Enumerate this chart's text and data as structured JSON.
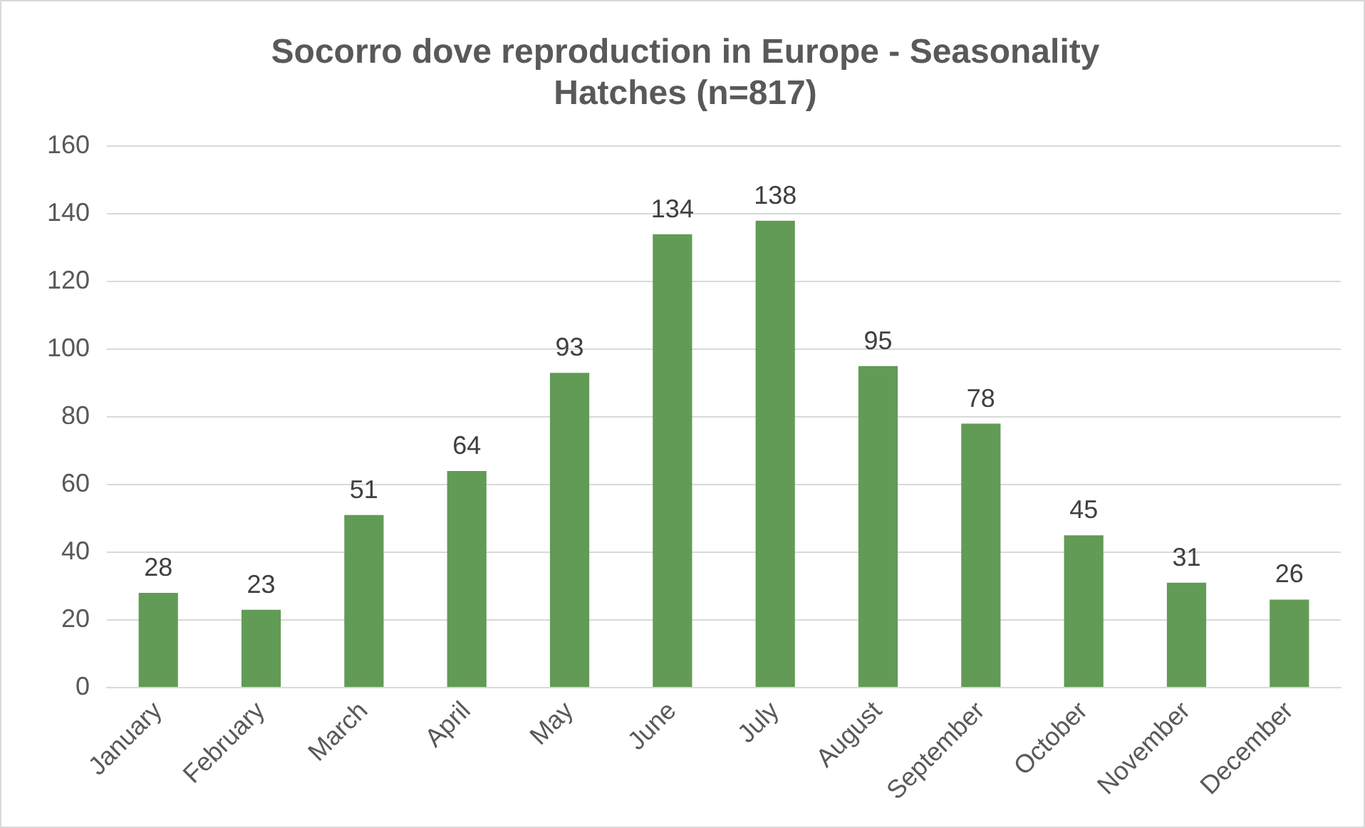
{
  "chart_data": {
    "type": "bar",
    "title": "Socorro dove reproduction in Europe - Seasonality\nHatches (n=817)",
    "categories": [
      "January",
      "February",
      "March",
      "April",
      "May",
      "June",
      "July",
      "August",
      "September",
      "October",
      "November",
      "December"
    ],
    "values": [
      28,
      23,
      51,
      64,
      93,
      134,
      138,
      95,
      78,
      45,
      31,
      26
    ],
    "color": "#629b55",
    "ylim": [
      0,
      160
    ],
    "yticks": [
      0,
      20,
      40,
      60,
      80,
      100,
      120,
      140,
      160
    ],
    "grid": "y",
    "legend": false,
    "data_labels": true
  }
}
